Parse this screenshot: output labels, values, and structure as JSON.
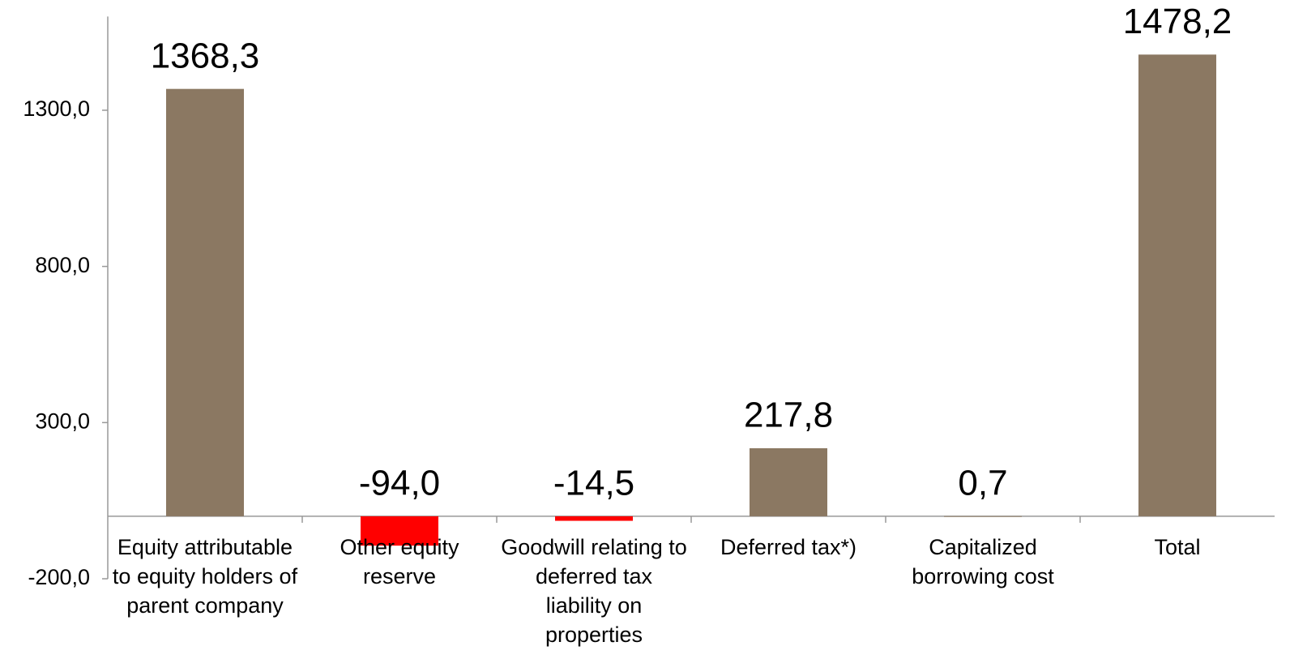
{
  "chart_data": {
    "type": "bar",
    "categories": [
      "Equity attributable to equity holders of parent company",
      "Other equity reserve",
      "Goodwill relating to deferred tax liability on properties",
      "Deferred tax*)",
      "Capitalized borrowing cost",
      "Total"
    ],
    "values": [
      1368.3,
      -94.0,
      -14.5,
      217.8,
      0.7,
      1478.2
    ],
    "value_labels": [
      "1368,3",
      "-94,0",
      "-14,5",
      "217,8",
      "0,7",
      "1478,2"
    ],
    "colors": [
      "#8b7862",
      "#ff0000",
      "#ff0000",
      "#8b7862",
      "#8b7862",
      "#8b7862"
    ],
    "ylim": [
      -200,
      1600
    ],
    "yticks": [
      {
        "value": -200,
        "label": "-200,0"
      },
      {
        "value": 300,
        "label": "300,0"
      },
      {
        "value": 800,
        "label": "800,0"
      },
      {
        "value": 1300,
        "label": "1300,0"
      }
    ],
    "grid": false
  }
}
